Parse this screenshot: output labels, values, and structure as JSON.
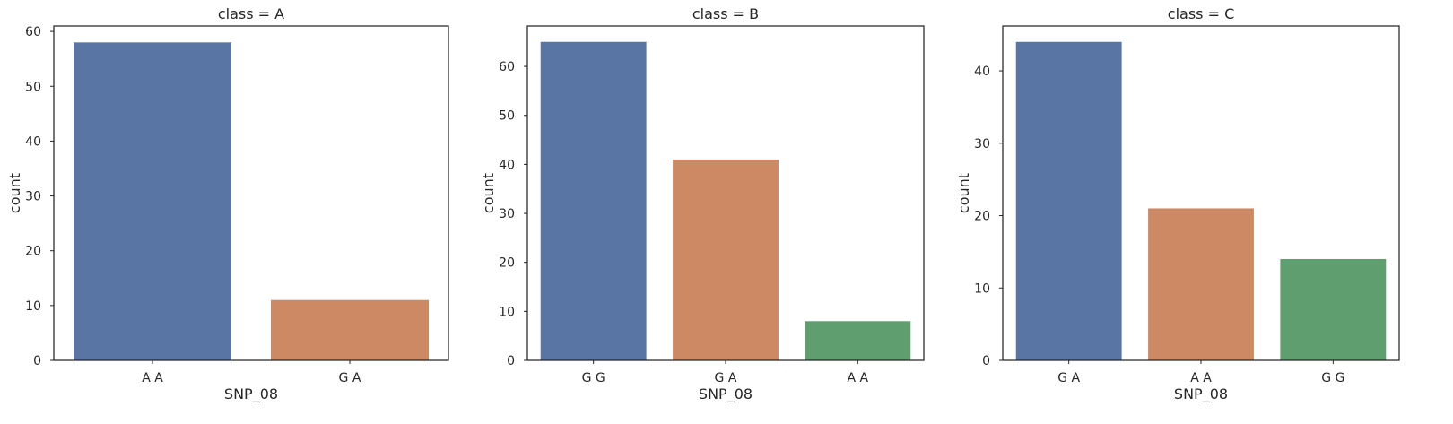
{
  "chart_data": [
    {
      "type": "bar",
      "title": "class = A",
      "xlabel": "SNP_08",
      "ylabel": "count",
      "categories": [
        "A A",
        "G A"
      ],
      "values": [
        58,
        11
      ],
      "colors": [
        "#5875a4",
        "#cc8963"
      ],
      "ylim": [
        0,
        61
      ],
      "yticks": [
        0,
        10,
        20,
        30,
        40,
        50,
        60
      ],
      "grid": false
    },
    {
      "type": "bar",
      "title": "class = B",
      "xlabel": "SNP_08",
      "ylabel": "count",
      "categories": [
        "G G",
        "G A",
        "A A"
      ],
      "values": [
        65,
        41,
        8
      ],
      "colors": [
        "#5875a4",
        "#cc8963",
        "#5f9e6e"
      ],
      "ylim": [
        0,
        68.25
      ],
      "yticks": [
        0,
        10,
        20,
        30,
        40,
        50,
        60
      ],
      "grid": false
    },
    {
      "type": "bar",
      "title": "class = C",
      "xlabel": "SNP_08",
      "ylabel": "count",
      "categories": [
        "G A",
        "A A",
        "G G"
      ],
      "values": [
        44,
        21,
        14
      ],
      "colors": [
        "#5875a4",
        "#cc8963",
        "#5f9e6e"
      ],
      "ylim": [
        0,
        46.2
      ],
      "yticks": [
        0,
        10,
        20,
        30,
        40
      ],
      "grid": false
    }
  ]
}
